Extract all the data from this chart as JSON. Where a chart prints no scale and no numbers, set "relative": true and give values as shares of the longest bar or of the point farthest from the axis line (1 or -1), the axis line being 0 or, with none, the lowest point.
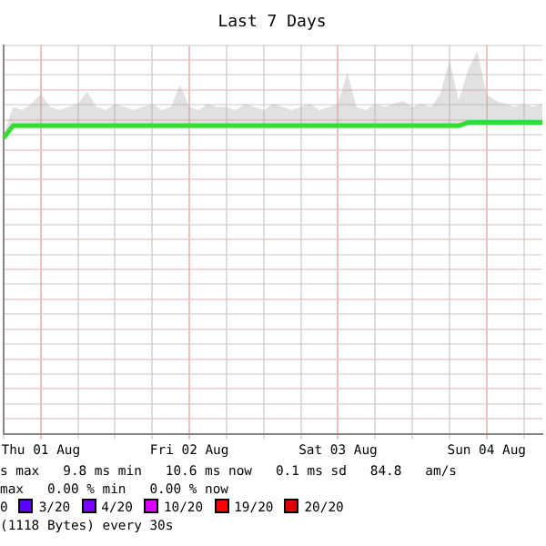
{
  "chart_data": {
    "type": "line",
    "title": "Last 7 Days",
    "relative": true,
    "grid": true,
    "legend": "bottom",
    "marker": "none",
    "line_style": "solid",
    "categories": [
      null,
      null,
      null,
      null,
      "Thu 01 Aug",
      null,
      null,
      null,
      null,
      null,
      null,
      null,
      null,
      null,
      null,
      null,
      null,
      null,
      null,
      null,
      "Fri 02 Aug",
      null,
      null,
      null,
      null,
      null,
      null,
      null,
      null,
      null,
      null,
      null,
      null,
      null,
      null,
      null,
      "Sat 03 Aug",
      null,
      null,
      null,
      null,
      null,
      null,
      null,
      null,
      null,
      null,
      null,
      null,
      null,
      null,
      null,
      "Sun 04 Aug",
      null,
      null,
      null,
      null,
      null,
      null
    ],
    "series": [
      {
        "color": "#33dd33",
        "values": [
          0.95,
          0.99,
          0.99,
          0.99,
          0.99,
          0.99,
          0.99,
          0.99,
          0.99,
          0.99,
          0.99,
          0.99,
          0.99,
          0.99,
          0.99,
          0.99,
          0.99,
          0.99,
          0.99,
          0.99,
          0.99,
          0.99,
          0.99,
          0.99,
          0.99,
          0.99,
          0.99,
          0.99,
          0.99,
          0.99,
          0.99,
          0.99,
          0.99,
          0.99,
          0.99,
          0.99,
          0.99,
          0.99,
          0.99,
          0.99,
          0.99,
          0.99,
          0.99,
          0.99,
          0.99,
          0.99,
          0.99,
          0.99,
          0.99,
          0.99,
          1,
          1,
          1,
          1,
          1,
          1,
          1,
          1,
          1
        ],
        "lower": [
          0.95,
          0.98,
          0.98,
          0.98,
          0.98,
          0.98,
          0.98,
          0.98,
          0.98,
          0.98,
          0.98,
          0.98,
          0.98,
          0.98,
          0.98,
          0.98,
          0.98,
          0.98,
          0.98,
          0.98,
          0.98,
          0.98,
          0.98,
          0.98,
          0.98,
          0.98,
          0.98,
          0.98,
          0.98,
          0.98,
          0.98,
          0.98,
          0.98,
          0.98,
          0.98,
          0.98,
          0.98,
          0.98,
          0.98,
          0.98,
          0.98,
          0.98,
          0.98,
          0.98,
          0.98,
          0.98,
          0.98,
          0.98,
          0.98,
          0.98,
          0.99,
          0.99,
          0.99,
          0.99,
          0.99,
          0.99,
          0.99,
          0.99,
          0.99
        ],
        "upper": [
          0.96,
          1.05,
          1.04,
          1.06,
          1.09,
          1.05,
          1.04,
          1.05,
          1.06,
          1.1,
          1.05,
          1.04,
          1.06,
          1.05,
          1.04,
          1.05,
          1.06,
          1.04,
          1.05,
          1.12,
          1.05,
          1.04,
          1.06,
          1.05,
          1.05,
          1.04,
          1.06,
          1.05,
          1.04,
          1.06,
          1.05,
          1.04,
          1.05,
          1.06,
          1.04,
          1.05,
          1.06,
          1.16,
          1.05,
          1.04,
          1.06,
          1.05,
          1.06,
          1.07,
          1.05,
          1.06,
          1.05,
          1.09,
          1.2,
          1.07,
          1.17,
          1.23,
          1.09,
          1.07,
          1.06,
          1.05,
          1.06,
          1.05,
          1.06
        ]
      },
      {
        "name": "3/20",
        "color": "#5e00ff",
        "values": [
          null,
          null,
          null,
          null,
          null,
          null,
          null,
          null,
          null,
          null,
          null,
          null,
          null,
          null,
          null,
          null,
          null,
          null,
          null,
          null,
          null,
          null,
          null,
          null,
          null,
          null,
          null,
          null,
          null,
          null,
          null,
          null,
          null,
          null,
          null,
          null,
          null,
          null,
          null,
          null,
          null,
          null,
          null,
          null,
          null,
          null,
          null,
          null,
          null,
          null,
          null,
          null,
          null,
          null,
          null,
          null,
          null,
          null,
          null
        ]
      },
      {
        "name": "4/20",
        "color": "#7e00ff",
        "values": [
          null,
          null,
          null,
          null,
          null,
          null,
          null,
          null,
          null,
          null,
          null,
          null,
          null,
          null,
          null,
          null,
          null,
          null,
          null,
          null,
          null,
          null,
          null,
          null,
          null,
          null,
          null,
          null,
          null,
          null,
          null,
          null,
          null,
          null,
          null,
          null,
          null,
          null,
          null,
          null,
          null,
          null,
          null,
          null,
          null,
          null,
          null,
          null,
          null,
          null,
          null,
          null,
          null,
          null,
          null,
          null,
          null,
          null,
          null
        ]
      },
      {
        "name": "10/20",
        "color": "#dd00ff",
        "values": [
          null,
          null,
          null,
          null,
          null,
          null,
          null,
          null,
          null,
          null,
          null,
          null,
          null,
          null,
          null,
          null,
          null,
          null,
          null,
          null,
          null,
          null,
          null,
          null,
          null,
          null,
          null,
          null,
          null,
          null,
          null,
          null,
          null,
          null,
          null,
          null,
          null,
          null,
          null,
          null,
          null,
          null,
          null,
          null,
          null,
          null,
          null,
          null,
          null,
          null,
          null,
          null,
          null,
          null,
          null,
          null,
          null,
          null,
          null
        ]
      },
      {
        "name": "19/20",
        "color": "#ff0000",
        "values": [
          null,
          null,
          null,
          null,
          null,
          null,
          null,
          null,
          null,
          null,
          null,
          null,
          null,
          null,
          null,
          null,
          null,
          null,
          null,
          null,
          null,
          null,
          null,
          null,
          null,
          null,
          null,
          null,
          null,
          null,
          null,
          null,
          null,
          null,
          null,
          null,
          null,
          null,
          null,
          null,
          null,
          null,
          null,
          null,
          null,
          null,
          null,
          null,
          null,
          null,
          null,
          null,
          null,
          null,
          null,
          null,
          null,
          null,
          null
        ]
      },
      {
        "name": "20/20",
        "color": "#dd0000",
        "values": [
          null,
          null,
          null,
          null,
          null,
          null,
          null,
          null,
          null,
          null,
          null,
          null,
          null,
          null,
          null,
          null,
          null,
          null,
          null,
          null,
          null,
          null,
          null,
          null,
          null,
          null,
          null,
          null,
          null,
          null,
          null,
          null,
          null,
          null,
          null,
          null,
          null,
          null,
          null,
          null,
          null,
          null,
          null,
          null,
          null,
          null,
          null,
          null,
          null,
          null,
          null,
          null,
          null,
          null,
          null,
          null,
          null,
          null,
          null
        ]
      }
    ],
    "annotations": [
      "s max   9.8 ms min   10.6 ms now   0.1 ms sd   84.8   am/s",
      "max   0.00 % min   0.00 % now",
      "0",
      "(1118 Bytes) every 30s"
    ]
  }
}
